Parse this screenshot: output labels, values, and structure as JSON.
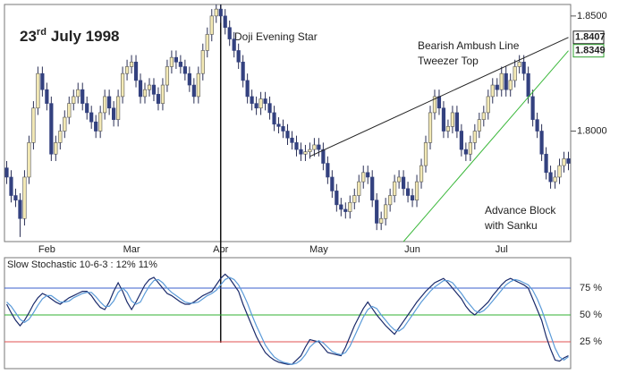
{
  "chart_data": [
    {
      "type": "candlestick",
      "title": {
        "day": "23",
        "ordinal": "rd",
        "text": "July 1998"
      },
      "annotations": [
        "Doji Evening Star",
        "Bearish Ambush Line",
        "Tweezer Top",
        "Advance Block",
        "with Sanku"
      ],
      "vline_at": 48,
      "up_color": "#f3e9b5",
      "down_color": "#33417f",
      "ylim": [
        1.752,
        1.855
      ],
      "yticks": [
        {
          "value": 1.8,
          "label": "1.8000"
        },
        {
          "value": 1.85,
          "label": "1.8500"
        }
      ],
      "price_labels": [
        {
          "value": 1.8407,
          "label": "1.8407",
          "color": "#222222"
        },
        {
          "value": 1.8349,
          "label": "1.8349",
          "color": "#2fa02f"
        }
      ],
      "trendlines": [
        {
          "x": [
            68,
            126
          ],
          "y": [
            1.789,
            1.8407
          ],
          "color": "#222222"
        },
        {
          "x": [
            89,
            126
          ],
          "y": [
            1.752,
            1.8349
          ],
          "color": "#3bb83b"
        }
      ],
      "categories": [
        null,
        null,
        null,
        null,
        null,
        null,
        null,
        null,
        null,
        "Feb",
        null,
        null,
        null,
        null,
        null,
        null,
        null,
        null,
        null,
        null,
        null,
        null,
        null,
        null,
        null,
        null,
        null,
        null,
        "Mar",
        null,
        null,
        null,
        null,
        null,
        null,
        null,
        null,
        null,
        null,
        null,
        null,
        null,
        null,
        null,
        null,
        null,
        null,
        null,
        "Apr",
        null,
        null,
        null,
        null,
        null,
        null,
        null,
        null,
        null,
        null,
        null,
        null,
        null,
        null,
        null,
        null,
        null,
        null,
        null,
        null,
        null,
        "May",
        null,
        null,
        null,
        null,
        null,
        null,
        null,
        null,
        null,
        null,
        null,
        null,
        null,
        null,
        null,
        null,
        null,
        null,
        null,
        null,
        "Jun",
        null,
        null,
        null,
        null,
        null,
        null,
        null,
        null,
        null,
        null,
        null,
        null,
        null,
        null,
        null,
        null,
        null,
        null,
        null,
        "Jul",
        null,
        null,
        null,
        null,
        null,
        null,
        null,
        null,
        null,
        null,
        null,
        null,
        null,
        null,
        null
      ],
      "open": [
        1.784,
        1.78,
        1.772,
        1.77,
        1.762,
        1.78,
        1.795,
        1.81,
        1.825,
        1.818,
        1.812,
        1.79,
        1.795,
        1.8,
        1.806,
        1.812,
        1.815,
        1.818,
        1.812,
        1.808,
        1.804,
        1.8,
        1.808,
        1.815,
        1.81,
        1.805,
        1.815,
        1.825,
        1.828,
        1.83,
        1.822,
        1.815,
        1.818,
        1.82,
        1.816,
        1.812,
        1.82,
        1.828,
        1.832,
        1.83,
        1.828,
        1.825,
        1.82,
        1.815,
        1.825,
        1.835,
        1.842,
        1.85,
        1.853,
        1.85,
        1.845,
        1.84,
        1.835,
        1.83,
        1.822,
        1.815,
        1.812,
        1.81,
        1.814,
        1.812,
        1.808,
        1.803,
        1.802,
        1.8,
        1.797,
        1.795,
        1.792,
        1.79,
        1.791,
        1.792,
        1.794,
        1.792,
        1.786,
        1.78,
        1.774,
        1.768,
        1.766,
        1.765,
        1.769,
        1.772,
        1.778,
        1.782,
        1.78,
        1.77,
        1.76,
        1.762,
        1.768,
        1.772,
        1.778,
        1.78,
        1.775,
        1.772,
        1.77,
        1.778,
        1.785,
        1.795,
        1.808,
        1.815,
        1.81,
        1.8,
        1.802,
        1.808,
        1.8,
        1.792,
        1.79,
        1.795,
        1.8,
        1.805,
        1.808,
        1.815,
        1.82,
        1.818,
        1.825,
        1.818,
        1.822,
        1.828,
        1.83,
        1.825,
        1.815,
        1.805,
        1.8,
        1.79,
        1.782,
        1.778,
        1.78,
        1.785,
        1.788
      ],
      "high": [
        1.787,
        1.783,
        1.775,
        1.773,
        1.783,
        1.798,
        1.813,
        1.828,
        1.828,
        1.821,
        1.815,
        1.798,
        1.803,
        1.809,
        1.815,
        1.818,
        1.821,
        1.821,
        1.815,
        1.811,
        1.807,
        1.811,
        1.818,
        1.818,
        1.813,
        1.818,
        1.828,
        1.831,
        1.833,
        1.833,
        1.825,
        1.821,
        1.823,
        1.823,
        1.819,
        1.823,
        1.831,
        1.835,
        1.835,
        1.833,
        1.831,
        1.828,
        1.823,
        1.828,
        1.838,
        1.845,
        1.853,
        1.855,
        1.855,
        1.853,
        1.848,
        1.843,
        1.838,
        1.833,
        1.825,
        1.818,
        1.815,
        1.817,
        1.817,
        1.815,
        1.811,
        1.806,
        1.805,
        1.803,
        1.8,
        1.798,
        1.795,
        1.794,
        1.795,
        1.797,
        1.797,
        1.795,
        1.789,
        1.783,
        1.777,
        1.771,
        1.769,
        1.772,
        1.775,
        1.781,
        1.785,
        1.785,
        1.783,
        1.773,
        1.765,
        1.771,
        1.775,
        1.781,
        1.783,
        1.783,
        1.778,
        1.775,
        1.781,
        1.788,
        1.798,
        1.811,
        1.818,
        1.818,
        1.813,
        1.805,
        1.811,
        1.811,
        1.803,
        1.795,
        1.798,
        1.803,
        1.808,
        1.811,
        1.818,
        1.823,
        1.823,
        1.828,
        1.828,
        1.825,
        1.831,
        1.833,
        1.833,
        1.828,
        1.818,
        1.808,
        1.803,
        1.793,
        1.785,
        1.783,
        1.788,
        1.791,
        1.791
      ],
      "low": [
        1.777,
        1.769,
        1.767,
        1.754,
        1.759,
        1.777,
        1.792,
        1.807,
        1.815,
        1.809,
        1.787,
        1.787,
        1.792,
        1.797,
        1.803,
        1.809,
        1.812,
        1.809,
        1.805,
        1.801,
        1.797,
        1.797,
        1.805,
        1.807,
        1.802,
        1.802,
        1.812,
        1.822,
        1.825,
        1.819,
        1.812,
        1.812,
        1.815,
        1.813,
        1.809,
        1.809,
        1.817,
        1.825,
        1.827,
        1.825,
        1.822,
        1.817,
        1.812,
        1.812,
        1.822,
        1.832,
        1.839,
        1.847,
        1.847,
        1.842,
        1.837,
        1.832,
        1.827,
        1.819,
        1.812,
        1.809,
        1.807,
        1.807,
        1.809,
        1.805,
        1.8,
        1.799,
        1.797,
        1.794,
        1.792,
        1.789,
        1.787,
        1.787,
        1.788,
        1.789,
        1.789,
        1.783,
        1.777,
        1.771,
        1.765,
        1.763,
        1.762,
        1.762,
        1.766,
        1.769,
        1.775,
        1.777,
        1.767,
        1.757,
        1.757,
        1.759,
        1.765,
        1.769,
        1.775,
        1.772,
        1.769,
        1.767,
        1.767,
        1.775,
        1.782,
        1.792,
        1.805,
        1.807,
        1.797,
        1.797,
        1.799,
        1.797,
        1.789,
        1.787,
        1.787,
        1.792,
        1.797,
        1.802,
        1.805,
        1.812,
        1.815,
        1.815,
        1.815,
        1.815,
        1.819,
        1.825,
        1.822,
        1.812,
        1.802,
        1.797,
        1.787,
        1.779,
        1.775,
        1.775,
        1.777,
        1.782,
        1.783
      ],
      "close": [
        1.78,
        1.772,
        1.77,
        1.762,
        1.78,
        1.795,
        1.81,
        1.825,
        1.818,
        1.812,
        1.79,
        1.795,
        1.8,
        1.806,
        1.812,
        1.815,
        1.818,
        1.812,
        1.808,
        1.804,
        1.8,
        1.808,
        1.815,
        1.81,
        1.805,
        1.815,
        1.825,
        1.828,
        1.83,
        1.822,
        1.815,
        1.818,
        1.82,
        1.816,
        1.812,
        1.82,
        1.828,
        1.832,
        1.83,
        1.828,
        1.825,
        1.82,
        1.815,
        1.825,
        1.835,
        1.842,
        1.85,
        1.853,
        1.85,
        1.845,
        1.84,
        1.835,
        1.83,
        1.822,
        1.815,
        1.812,
        1.81,
        1.814,
        1.812,
        1.808,
        1.803,
        1.802,
        1.8,
        1.797,
        1.795,
        1.792,
        1.79,
        1.791,
        1.792,
        1.794,
        1.792,
        1.786,
        1.78,
        1.774,
        1.768,
        1.766,
        1.765,
        1.769,
        1.772,
        1.778,
        1.782,
        1.78,
        1.77,
        1.76,
        1.762,
        1.768,
        1.772,
        1.778,
        1.78,
        1.775,
        1.772,
        1.77,
        1.778,
        1.785,
        1.795,
        1.808,
        1.815,
        1.81,
        1.8,
        1.802,
        1.808,
        1.8,
        1.792,
        1.79,
        1.795,
        1.8,
        1.805,
        1.808,
        1.815,
        1.82,
        1.818,
        1.825,
        1.818,
        1.822,
        1.828,
        1.83,
        1.825,
        1.815,
        1.805,
        1.8,
        1.79,
        1.782,
        1.778,
        1.78,
        1.785,
        1.788,
        1.786
      ]
    },
    {
      "type": "line",
      "title": "Slow Stochastic 10-6-3 : 12% 11%",
      "ylim": [
        0,
        100
      ],
      "yticks": [
        {
          "value": 25,
          "label": "25 %"
        },
        {
          "value": 50,
          "label": "50 %"
        },
        {
          "value": 75,
          "label": "75 %"
        }
      ],
      "grid_colors": [
        "#e05050",
        "#30b030",
        "#3a5fcd"
      ],
      "series": [
        {
          "color": "#1a2a6a",
          "values": [
            60,
            52,
            45,
            40,
            45,
            52,
            60,
            66,
            70,
            68,
            65,
            62,
            60,
            63,
            66,
            68,
            70,
            72,
            72,
            68,
            62,
            57,
            55,
            62,
            72,
            80,
            72,
            62,
            55,
            62,
            70,
            78,
            83,
            85,
            80,
            75,
            70,
            68,
            65,
            62,
            60,
            60,
            62,
            65,
            68,
            70,
            72,
            78,
            84,
            88,
            84,
            78,
            72,
            60,
            50,
            40,
            30,
            22,
            15,
            11,
            8,
            6,
            5,
            4,
            4,
            8,
            12,
            20,
            27,
            26,
            25,
            20,
            15,
            14,
            13,
            12,
            20,
            30,
            40,
            48,
            56,
            62,
            56,
            50,
            45,
            40,
            36,
            32,
            38,
            44,
            50,
            56,
            62,
            67,
            72,
            76,
            80,
            82,
            84,
            80,
            75,
            70,
            65,
            58,
            53,
            50,
            54,
            58,
            62,
            68,
            73,
            78,
            82,
            84,
            82,
            80,
            78,
            75,
            65,
            55,
            45,
            30,
            18,
            8,
            7,
            10,
            12
          ]
        },
        {
          "color": "#5a9ad8",
          "values": [
            62,
            58,
            52,
            46,
            43,
            46,
            52,
            59,
            65,
            68,
            68,
            65,
            62,
            62,
            63,
            66,
            68,
            70,
            71,
            71,
            67,
            62,
            58,
            58,
            63,
            71,
            75,
            71,
            63,
            60,
            62,
            70,
            77,
            82,
            83,
            80,
            75,
            71,
            68,
            65,
            62,
            61,
            61,
            62,
            65,
            68,
            70,
            73,
            78,
            83,
            85,
            83,
            78,
            70,
            61,
            50,
            40,
            31,
            22,
            16,
            11,
            8,
            6,
            5,
            4,
            5,
            8,
            13,
            20,
            24,
            26,
            24,
            20,
            16,
            14,
            13,
            15,
            21,
            30,
            39,
            48,
            55,
            58,
            56,
            50,
            45,
            40,
            36,
            35,
            38,
            44,
            50,
            56,
            62,
            67,
            72,
            76,
            79,
            82,
            82,
            80,
            75,
            70,
            64,
            59,
            54,
            52,
            54,
            58,
            63,
            68,
            73,
            78,
            81,
            83,
            82,
            80,
            78,
            73,
            65,
            55,
            43,
            31,
            19,
            11,
            8,
            11
          ]
        }
      ]
    }
  ]
}
